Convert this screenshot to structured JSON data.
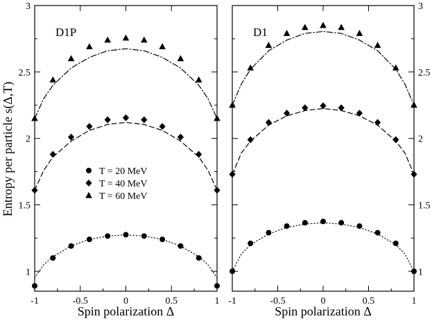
{
  "chart_data": [
    {
      "type": "scatter",
      "panel_label": "D1P",
      "xlabel": "Spin polarization Δ",
      "ylabel": "Entropy per particle s(Δ,T)",
      "xlim": [
        -1,
        1
      ],
      "ylim": [
        0.85,
        3.0
      ],
      "x_ticks": [
        -1,
        -0.5,
        0,
        0.5,
        1
      ],
      "x_tick_labels": [
        "-1",
        "-0.5",
        "0",
        "0.5",
        "1"
      ],
      "y_ticks": [
        1,
        1.5,
        2,
        2.5,
        3
      ],
      "y_tick_labels": [
        "1",
        "1.5",
        "2",
        "2.5",
        "3"
      ],
      "y_tick_side": "left",
      "series": [
        {
          "name": "T = 20 MeV",
          "marker": "circle",
          "x": [
            -1,
            -0.8,
            -0.6,
            -0.4,
            -0.2,
            0,
            0.2,
            0.4,
            0.6,
            0.8,
            1
          ],
          "y": [
            0.89,
            1.1,
            1.19,
            1.24,
            1.265,
            1.275,
            1.265,
            1.24,
            1.19,
            1.1,
            0.89
          ]
        },
        {
          "name": "T = 40 MeV",
          "marker": "diamond",
          "x": [
            -1,
            -0.8,
            -0.6,
            -0.4,
            -0.2,
            0,
            0.2,
            0.4,
            0.6,
            0.8,
            1
          ],
          "y": [
            1.61,
            1.88,
            2.01,
            2.09,
            2.14,
            2.155,
            2.14,
            2.09,
            2.01,
            1.88,
            1.61
          ]
        },
        {
          "name": "T = 60 MeV",
          "marker": "triangle",
          "x": [
            -1,
            -0.8,
            -0.6,
            -0.4,
            -0.2,
            0,
            0.2,
            0.4,
            0.6,
            0.8,
            1
          ],
          "y": [
            2.15,
            2.44,
            2.6,
            2.69,
            2.74,
            2.755,
            2.74,
            2.69,
            2.6,
            2.44,
            2.15
          ]
        }
      ],
      "curves": [
        {
          "series": "T = 20 MeV",
          "style": "dotted",
          "x": [
            -1,
            -0.9,
            -0.8,
            -0.6,
            -0.4,
            -0.2,
            0,
            0.2,
            0.4,
            0.6,
            0.8,
            0.9,
            1
          ],
          "y": [
            0.95,
            1.05,
            1.11,
            1.19,
            1.24,
            1.265,
            1.275,
            1.265,
            1.24,
            1.19,
            1.11,
            1.05,
            0.95
          ]
        },
        {
          "series": "T = 40 MeV",
          "style": "dashed",
          "x": [
            -1,
            -0.9,
            -0.8,
            -0.6,
            -0.4,
            -0.2,
            0,
            0.2,
            0.4,
            0.6,
            0.8,
            0.9,
            1
          ],
          "y": [
            1.61,
            1.76,
            1.86,
            1.98,
            2.06,
            2.105,
            2.12,
            2.105,
            2.06,
            1.98,
            1.86,
            1.76,
            1.61
          ]
        },
        {
          "series": "T = 60 MeV",
          "style": "dash-dot",
          "x": [
            -1,
            -0.9,
            -0.8,
            -0.6,
            -0.4,
            -0.2,
            0,
            0.2,
            0.4,
            0.6,
            0.8,
            0.9,
            1
          ],
          "y": [
            2.15,
            2.3,
            2.4,
            2.53,
            2.61,
            2.66,
            2.675,
            2.66,
            2.61,
            2.53,
            2.4,
            2.3,
            2.15
          ]
        }
      ],
      "legend": {
        "placement": "center-left",
        "entries": [
          {
            "marker": "circle",
            "label": "T = 20 MeV"
          },
          {
            "marker": "diamond",
            "label": "T = 40 MeV"
          },
          {
            "marker": "triangle",
            "label": "T = 60 MeV"
          }
        ]
      }
    },
    {
      "type": "scatter",
      "panel_label": "D1",
      "xlabel": "Spin polarization Δ",
      "ylabel": "",
      "xlim": [
        -1,
        1
      ],
      "ylim": [
        0.85,
        3.0
      ],
      "x_ticks": [
        -1,
        -0.5,
        0,
        0.5,
        1
      ],
      "x_tick_labels": [
        "-1",
        "-0.5",
        "0",
        "0.5",
        "1"
      ],
      "y_ticks": [
        1,
        1.5,
        2,
        2.5,
        3
      ],
      "y_tick_labels": [
        "1",
        "1.5",
        "2",
        "2.5",
        "3"
      ],
      "y_tick_side": "right",
      "series": [
        {
          "name": "T = 20 MeV",
          "marker": "circle",
          "x": [
            -1,
            -0.8,
            -0.6,
            -0.4,
            -0.2,
            0,
            0.2,
            0.4,
            0.6,
            0.8,
            1
          ],
          "y": [
            1.0,
            1.21,
            1.29,
            1.34,
            1.365,
            1.375,
            1.365,
            1.34,
            1.29,
            1.21,
            1.0
          ]
        },
        {
          "name": "T = 40 MeV",
          "marker": "diamond",
          "x": [
            -1,
            -0.8,
            -0.6,
            -0.4,
            -0.2,
            0,
            0.2,
            0.4,
            0.6,
            0.8,
            1
          ],
          "y": [
            1.73,
            1.99,
            2.12,
            2.19,
            2.23,
            2.245,
            2.23,
            2.19,
            2.12,
            1.99,
            1.73
          ]
        },
        {
          "name": "T = 60 MeV",
          "marker": "triangle",
          "x": [
            -1,
            -0.8,
            -0.6,
            -0.4,
            -0.2,
            0,
            0.2,
            0.4,
            0.6,
            0.8,
            1
          ],
          "y": [
            2.25,
            2.53,
            2.7,
            2.79,
            2.835,
            2.85,
            2.835,
            2.79,
            2.7,
            2.53,
            2.25
          ]
        }
      ],
      "curves": [
        {
          "series": "T = 20 MeV",
          "style": "dotted",
          "x": [
            -1,
            -0.9,
            -0.8,
            -0.6,
            -0.4,
            -0.2,
            0,
            0.2,
            0.4,
            0.6,
            0.8,
            0.9,
            1
          ],
          "y": [
            1.0,
            1.13,
            1.2,
            1.28,
            1.33,
            1.355,
            1.365,
            1.355,
            1.33,
            1.28,
            1.2,
            1.13,
            1.0
          ]
        },
        {
          "series": "T = 40 MeV",
          "style": "dashed",
          "x": [
            -1,
            -0.9,
            -0.8,
            -0.6,
            -0.4,
            -0.2,
            0,
            0.2,
            0.4,
            0.6,
            0.8,
            0.9,
            1
          ],
          "y": [
            1.73,
            1.89,
            1.98,
            2.1,
            2.17,
            2.21,
            2.225,
            2.21,
            2.17,
            2.1,
            1.98,
            1.89,
            1.73
          ]
        },
        {
          "series": "T = 60 MeV",
          "style": "dash-dot",
          "x": [
            -1,
            -0.9,
            -0.8,
            -0.6,
            -0.4,
            -0.2,
            0,
            0.2,
            0.4,
            0.6,
            0.8,
            0.9,
            1
          ],
          "y": [
            2.25,
            2.41,
            2.52,
            2.66,
            2.74,
            2.79,
            2.805,
            2.79,
            2.74,
            2.66,
            2.52,
            2.41,
            2.25
          ]
        }
      ]
    }
  ]
}
